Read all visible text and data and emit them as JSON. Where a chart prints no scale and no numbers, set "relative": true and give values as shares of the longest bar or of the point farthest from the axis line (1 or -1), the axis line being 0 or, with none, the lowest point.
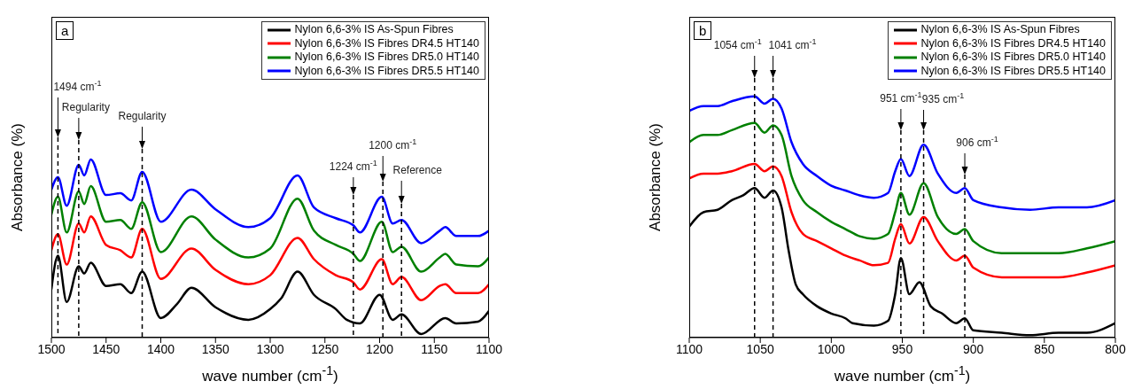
{
  "chart_data": [
    {
      "type": "line",
      "title": "a",
      "xlabel": "wave number (cm$^{-1}$)",
      "ylabel": "Absorbance (%)",
      "relative": true,
      "xlim": [
        1500,
        1100
      ],
      "xticks": [
        1500,
        1450,
        1400,
        1350,
        1300,
        1250,
        1200,
        1150,
        1100
      ],
      "legend": "top right",
      "marker": "none",
      "line_style": "solid",
      "ref_lines": [
        {
          "axis": "x",
          "value": 1494,
          "label": "1494 cm$^{-1}$",
          "color": "#000000",
          "line_style": "dashed"
        },
        {
          "axis": "x",
          "value": 1475,
          "label": "Regularity",
          "color": "#000000",
          "line_style": "dashed"
        },
        {
          "axis": "x",
          "value": 1417,
          "label": "Regularity",
          "color": "#000000",
          "line_style": "dashed"
        },
        {
          "axis": "x",
          "value": 1224,
          "label": "1224 cm$^{-1}$",
          "color": "#000000",
          "line_style": "dashed"
        },
        {
          "axis": "x",
          "value": 1197,
          "label": "1200 cm$^{-1}$",
          "color": "#000000",
          "line_style": "dashed"
        },
        {
          "axis": "x",
          "value": 1180,
          "label": "Reference",
          "color": "#000000",
          "line_style": "dashed"
        }
      ],
      "series": [
        {
          "name": "Nylon 6,6-3% IS As-Spun Fibres",
          "color": "#000000",
          "x": [
            1500,
            1494,
            1486,
            1475,
            1470,
            1464,
            1450,
            1437,
            1427,
            1417,
            1400,
            1385,
            1372,
            1350,
            1320,
            1300,
            1290,
            1275,
            1260,
            1240,
            1230,
            1218,
            1200,
            1188,
            1180,
            1162,
            1140,
            1130,
            1110,
            1100
          ],
          "values": [
            0.27,
            0.46,
            0.2,
            0.4,
            0.36,
            0.42,
            0.29,
            0.3,
            0.25,
            0.37,
            0.11,
            0.19,
            0.28,
            0.17,
            0.1,
            0.16,
            0.22,
            0.37,
            0.24,
            0.16,
            0.1,
            0.08,
            0.24,
            0.1,
            0.13,
            0.02,
            0.11,
            0.08,
            0.09,
            0.15
          ]
        },
        {
          "name": "Nylon 6,6-3% IS Fibres DR4.5 HT140",
          "color": "#ff0000",
          "x": [
            1500,
            1494,
            1486,
            1475,
            1470,
            1464,
            1450,
            1437,
            1427,
            1417,
            1400,
            1372,
            1350,
            1320,
            1300,
            1275,
            1260,
            1240,
            1224,
            1218,
            1198,
            1188,
            1180,
            1162,
            1145,
            1140,
            1130,
            1110,
            1100
          ],
          "values": [
            0.49,
            0.58,
            0.41,
            0.64,
            0.59,
            0.68,
            0.52,
            0.49,
            0.45,
            0.61,
            0.33,
            0.5,
            0.38,
            0.3,
            0.35,
            0.56,
            0.44,
            0.35,
            0.31,
            0.27,
            0.44,
            0.3,
            0.34,
            0.21,
            0.29,
            0.3,
            0.25,
            0.25,
            0.3
          ]
        },
        {
          "name": "Nylon 6,6-3% IS Fibres DR5.0 HT140",
          "color": "#008000",
          "x": [
            1500,
            1494,
            1486,
            1475,
            1470,
            1464,
            1450,
            1437,
            1427,
            1417,
            1400,
            1372,
            1350,
            1320,
            1300,
            1275,
            1260,
            1240,
            1224,
            1218,
            1198,
            1188,
            1180,
            1162,
            1145,
            1140,
            1130,
            1110,
            1100
          ],
          "values": [
            0.69,
            0.79,
            0.59,
            0.82,
            0.75,
            0.85,
            0.65,
            0.66,
            0.61,
            0.76,
            0.48,
            0.68,
            0.55,
            0.45,
            0.5,
            0.78,
            0.6,
            0.52,
            0.47,
            0.43,
            0.65,
            0.48,
            0.51,
            0.37,
            0.45,
            0.47,
            0.41,
            0.4,
            0.45
          ]
        },
        {
          "name": "Nylon 6,6-3% IS Fibres DR5.5 HT140",
          "color": "#0000ff",
          "x": [
            1500,
            1494,
            1486,
            1475,
            1470,
            1464,
            1450,
            1437,
            1427,
            1417,
            1400,
            1372,
            1350,
            1320,
            1300,
            1275,
            1260,
            1240,
            1224,
            1218,
            1198,
            1188,
            1180,
            1162,
            1145,
            1140,
            1130,
            1110,
            1100
          ],
          "values": [
            0.83,
            0.9,
            0.74,
            0.97,
            0.91,
            1,
            0.8,
            0.81,
            0.77,
            0.93,
            0.65,
            0.83,
            0.72,
            0.62,
            0.67,
            0.91,
            0.73,
            0.67,
            0.63,
            0.59,
            0.79,
            0.64,
            0.66,
            0.53,
            0.6,
            0.62,
            0.57,
            0.57,
            0.6
          ]
        }
      ]
    },
    {
      "type": "line",
      "title": "b",
      "xlabel": "wave number (cm$^{-1}$)",
      "ylabel": "Absorbance (%)",
      "relative": true,
      "xlim": [
        1100,
        800
      ],
      "xticks": [
        1100,
        1050,
        1000,
        950,
        900,
        850,
        800
      ],
      "legend": "top right",
      "marker": "none",
      "line_style": "solid",
      "ref_lines": [
        {
          "axis": "x",
          "value": 1054,
          "label": "1054 cm$^{-1}$",
          "color": "#000000",
          "line_style": "dashed"
        },
        {
          "axis": "x",
          "value": 1041,
          "label": "1041 cm$^{-1}$",
          "color": "#000000",
          "line_style": "dashed"
        },
        {
          "axis": "x",
          "value": 951,
          "label": "951 cm$^{-1}$",
          "color": "#000000",
          "line_style": "dashed"
        },
        {
          "axis": "x",
          "value": 935,
          "label": "935 cm$^{-1}$",
          "color": "#000000",
          "line_style": "dashed"
        },
        {
          "axis": "x",
          "value": 906,
          "label": "906 cm$^{-1}$",
          "color": "#000000",
          "line_style": "dashed"
        }
      ],
      "series": [
        {
          "name": "Nylon 6,6-3% IS As-Spun Fibres",
          "color": "#000000",
          "x": [
            1100,
            1090,
            1080,
            1070,
            1062,
            1054,
            1047,
            1041,
            1035,
            1030,
            1025,
            1020,
            1010,
            1000,
            990,
            985,
            970,
            960,
            955,
            951,
            945,
            938,
            930,
            922,
            912,
            906,
            900,
            880,
            860,
            840,
            820,
            800
          ],
          "values": [
            0.46,
            0.52,
            0.53,
            0.57,
            0.59,
            0.62,
            0.58,
            0.61,
            0.54,
            0.36,
            0.22,
            0.18,
            0.13,
            0.1,
            0.08,
            0.06,
            0.05,
            0.07,
            0.18,
            0.33,
            0.18,
            0.23,
            0.13,
            0.1,
            0.06,
            0.08,
            0.03,
            0.02,
            0.01,
            0.02,
            0.02,
            0.06
          ]
        },
        {
          "name": "Nylon 6,6-3% IS Fibres DR4.5 HT140",
          "color": "#ff0000",
          "x": [
            1100,
            1090,
            1080,
            1070,
            1054,
            1047,
            1041,
            1035,
            1028,
            1020,
            1010,
            1000,
            990,
            980,
            970,
            960,
            955,
            951,
            945,
            935,
            925,
            912,
            906,
            900,
            880,
            860,
            840,
            820,
            800
          ],
          "values": [
            0.66,
            0.68,
            0.68,
            0.69,
            0.72,
            0.69,
            0.71,
            0.67,
            0.52,
            0.43,
            0.4,
            0.37,
            0.34,
            0.32,
            0.3,
            0.31,
            0.41,
            0.47,
            0.39,
            0.5,
            0.4,
            0.32,
            0.34,
            0.29,
            0.25,
            0.25,
            0.25,
            0.27,
            0.3
          ]
        },
        {
          "name": "Nylon 6,6-3% IS Fibres DR5.0 HT140",
          "color": "#008000",
          "x": [
            1100,
            1090,
            1080,
            1070,
            1054,
            1047,
            1041,
            1035,
            1028,
            1020,
            1010,
            1000,
            990,
            980,
            970,
            960,
            955,
            951,
            945,
            935,
            925,
            912,
            906,
            900,
            880,
            860,
            840,
            820,
            800
          ],
          "values": [
            0.81,
            0.84,
            0.84,
            0.86,
            0.89,
            0.85,
            0.88,
            0.84,
            0.67,
            0.57,
            0.52,
            0.48,
            0.45,
            0.42,
            0.41,
            0.43,
            0.52,
            0.6,
            0.51,
            0.64,
            0.5,
            0.43,
            0.45,
            0.4,
            0.35,
            0.35,
            0.35,
            0.37,
            0.4
          ]
        },
        {
          "name": "Nylon 6,6-3% IS Fibres DR5.5 HT140",
          "color": "#0000ff",
          "x": [
            1100,
            1090,
            1080,
            1070,
            1054,
            1047,
            1041,
            1035,
            1028,
            1020,
            1010,
            1000,
            990,
            980,
            970,
            960,
            955,
            951,
            945,
            935,
            925,
            912,
            906,
            900,
            880,
            860,
            840,
            820,
            800
          ],
          "values": [
            0.94,
            0.96,
            0.96,
            0.98,
            1,
            0.97,
            0.99,
            0.95,
            0.81,
            0.72,
            0.67,
            0.63,
            0.61,
            0.59,
            0.58,
            0.6,
            0.69,
            0.74,
            0.67,
            0.8,
            0.68,
            0.6,
            0.62,
            0.57,
            0.54,
            0.53,
            0.54,
            0.54,
            0.57
          ]
        }
      ]
    }
  ]
}
